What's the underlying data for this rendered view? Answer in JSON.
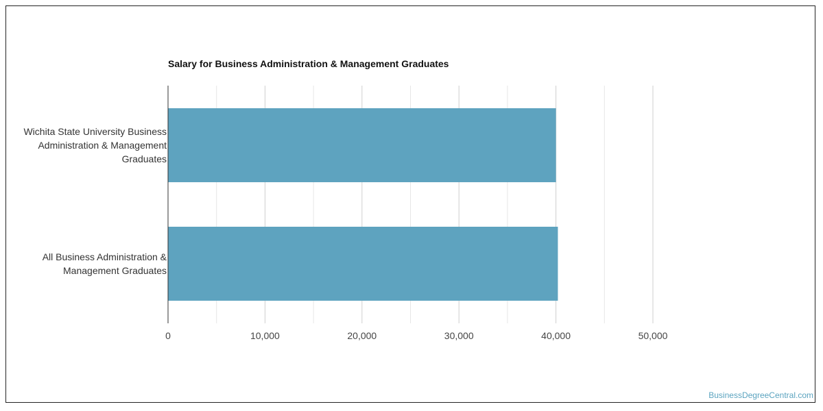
{
  "chart_data": {
    "type": "bar",
    "orientation": "horizontal",
    "title": "Salary for Business Administration & Management Graduates",
    "categories": [
      "Wichita State University Business Administration & Management Graduates",
      "All Business Administration & Management Graduates"
    ],
    "category_lines": [
      [
        "Wichita State University Business",
        "Administration & Management",
        "Graduates"
      ],
      [
        "All Business Administration &",
        "Management Graduates"
      ]
    ],
    "values": [
      40000,
      40200
    ],
    "xlim": [
      0,
      50000
    ],
    "x_ticks": [
      0,
      10000,
      20000,
      30000,
      40000,
      50000
    ],
    "x_tick_labels": [
      "0",
      "10,000",
      "20,000",
      "30,000",
      "40,000",
      "50,000"
    ],
    "grid": true,
    "bar_color": "#5ea3bf",
    "xlabel": "",
    "ylabel": ""
  },
  "watermark": "BusinessDegreeCentral.com"
}
